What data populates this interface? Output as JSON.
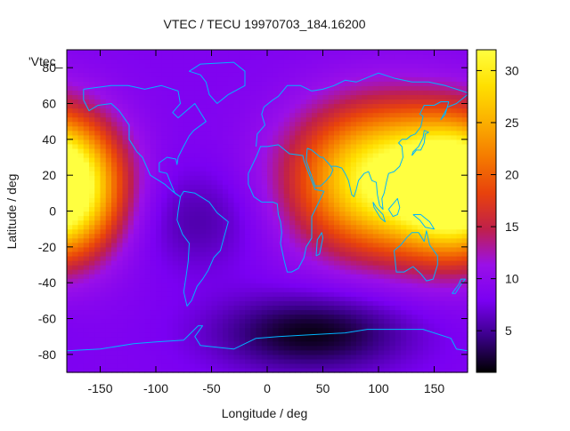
{
  "chart_data": {
    "type": "heatmap",
    "title": "VTEC / TECU 19970703_184.16200",
    "xlabel": "Longitude / deg",
    "ylabel": "Latitude / deg",
    "key_label": "'Vtec_",
    "xlim": [
      -180,
      180
    ],
    "ylim": [
      -90,
      90
    ],
    "x_ticks": [
      -150,
      -100,
      -50,
      0,
      50,
      100,
      150
    ],
    "y_ticks": [
      80,
      60,
      40,
      20,
      0,
      -20,
      -40,
      -60,
      -80
    ],
    "colorbar": {
      "range": [
        1,
        32
      ],
      "ticks": [
        30,
        25,
        20,
        15,
        10,
        5
      ],
      "palette": [
        "#000000",
        "#3a0088",
        "#7a00f2",
        "#9a10e8",
        "#c0204a",
        "#e8420c",
        "#f57a00",
        "#fbb000",
        "#ffe000",
        "#ffff40"
      ]
    },
    "grid": false,
    "value_model": {
      "background": 8.5,
      "peaks": [
        {
          "lon": 105,
          "lat": 18,
          "amplitude": 24,
          "lon_width": 55,
          "lat_width": 28
        },
        {
          "lon": -180,
          "lat": 15,
          "amplitude": 15,
          "lon_width": 35,
          "lat_width": 25
        },
        {
          "lon": 170,
          "lat": 10,
          "amplitude": 10,
          "lon_width": 35,
          "lat_width": 25
        }
      ],
      "lows": [
        {
          "lon": 40,
          "lat": -68,
          "amplitude": -7,
          "lon_width": 60,
          "lat_width": 15
        },
        {
          "lon": -60,
          "lat": -5,
          "amplitude": -3,
          "lon_width": 40,
          "lat_width": 20
        }
      ]
    },
    "coastline_color": "#00b4ff"
  }
}
